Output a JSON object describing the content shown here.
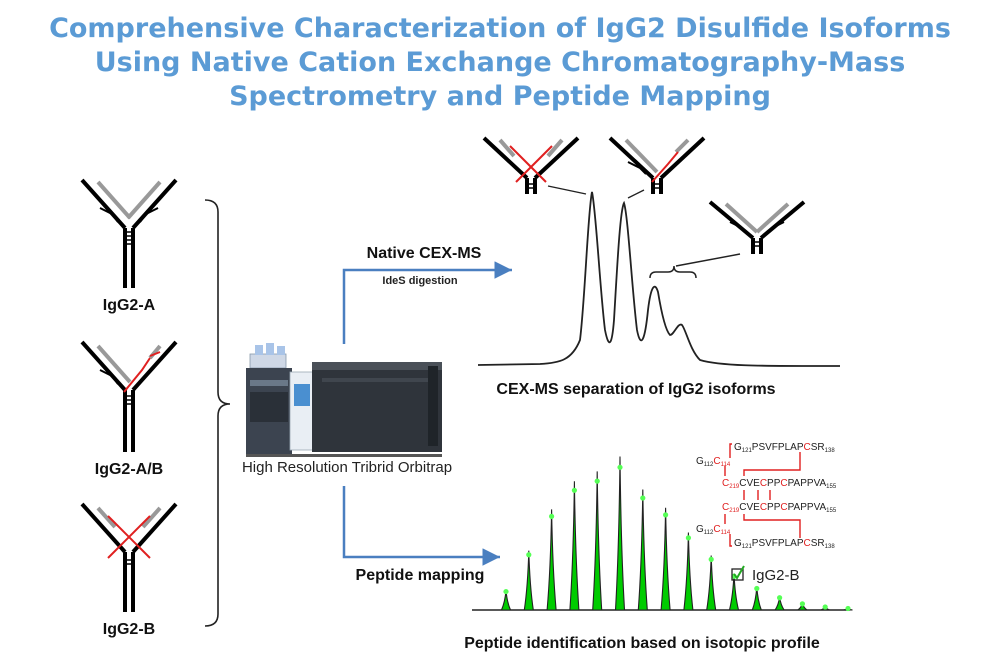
{
  "title": {
    "line1": "Comprehensive Characterization of IgG2 Disulfide Isoforms",
    "line2": "Using Native Cation Exchange Chromatography-Mass",
    "line3": "Spectrometry and Peptide Mapping"
  },
  "isoforms": {
    "a": "IgG2-A",
    "ab": "IgG2-A/B",
    "b": "IgG2-B"
  },
  "instrument": "High Resolution Tribrid Orbitrap",
  "native_arrow": {
    "label": "Native CEX-MS",
    "sublabel": "IdeS digestion"
  },
  "chromatogram_caption": "CEX-MS separation of IgG2 isoforms",
  "peptide_arrow": {
    "label": "Peptide mapping"
  },
  "spectrum_caption": "Peptide identification based on isotopic profile",
  "spectrum_legend": "IgG2-B",
  "spectrum_peaks": [
    0.12,
    0.36,
    0.61,
    0.78,
    0.84,
    0.93,
    0.73,
    0.62,
    0.47,
    0.33,
    0.22,
    0.14,
    0.08,
    0.04,
    0.02,
    0.01
  ],
  "disulfide_map": {
    "row1": {
      "left": "G",
      "left_sub": "112",
      "c": "C",
      "c_sub": "114",
      "right": "G",
      "right_sub": "121",
      "seq": "PSVFPLAP",
      "c2": "C",
      "tail": "SR",
      "tail_sub": "138"
    },
    "row2": {
      "c": "C",
      "c_sub": "219",
      "seq": "CVE",
      "c2": "C",
      "mid": "PP",
      "c3": "C",
      "rest": "PAPPVA",
      "end_sub": "155"
    },
    "row3": {
      "c": "C",
      "c_sub": "219",
      "seq": "CVE",
      "c2": "C",
      "mid": "PP",
      "c3": "C",
      "rest": "PAPPVA",
      "end_sub": "155"
    },
    "row4": {
      "left": "G",
      "left_sub": "112",
      "c": "C",
      "c_sub": "114",
      "right": "G",
      "right_sub": "121",
      "seq": "PSVFPLAP",
      "c2": "C",
      "tail": "SR",
      "tail_sub": "138"
    }
  },
  "colors": {
    "title": "#5b9bd5",
    "arrow": "#4a7fc0",
    "disulfide": "#e02020",
    "heavy_chain": "#000000",
    "light_chain": "#999999",
    "spectrum_fill": "#00cc00",
    "spectrum_dot": "#55ff55"
  }
}
